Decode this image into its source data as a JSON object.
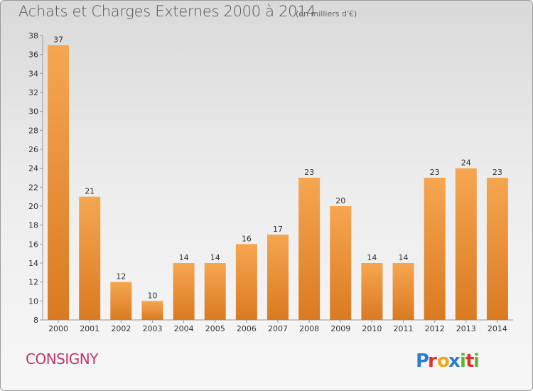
{
  "header": {
    "title": "Achats et Charges Externes 2000 à 2014",
    "unit": "(en milliers d'€)"
  },
  "footer": {
    "commune": "CONSIGNY",
    "logo_text": "Proxiti"
  },
  "colors": {
    "bar_light": "#f6a650",
    "bar_dark": "#d97a22",
    "commune": "#c0376b",
    "logo_p": "#2c7bd3",
    "logo_r": "#e0322a",
    "logo_o": "#f2a51c",
    "logo_x": "#2c7bd3",
    "logo_i": "#5cb531",
    "logo_t": "#e0322a",
    "logo_i2": "#5cb531"
  },
  "chart_data": {
    "type": "bar",
    "categories": [
      "2000",
      "2001",
      "2002",
      "2003",
      "2004",
      "2005",
      "2006",
      "2007",
      "2008",
      "2009",
      "2010",
      "2011",
      "2012",
      "2013",
      "2014"
    ],
    "values": [
      37,
      21,
      12,
      10,
      14,
      14,
      16,
      17,
      23,
      20,
      14,
      14,
      23,
      24,
      23
    ],
    "ylim": [
      8,
      38
    ],
    "yticks": [
      8,
      10,
      12,
      14,
      16,
      18,
      20,
      22,
      24,
      26,
      28,
      30,
      32,
      34,
      36,
      38
    ],
    "grid": false,
    "data_labels": true
  }
}
